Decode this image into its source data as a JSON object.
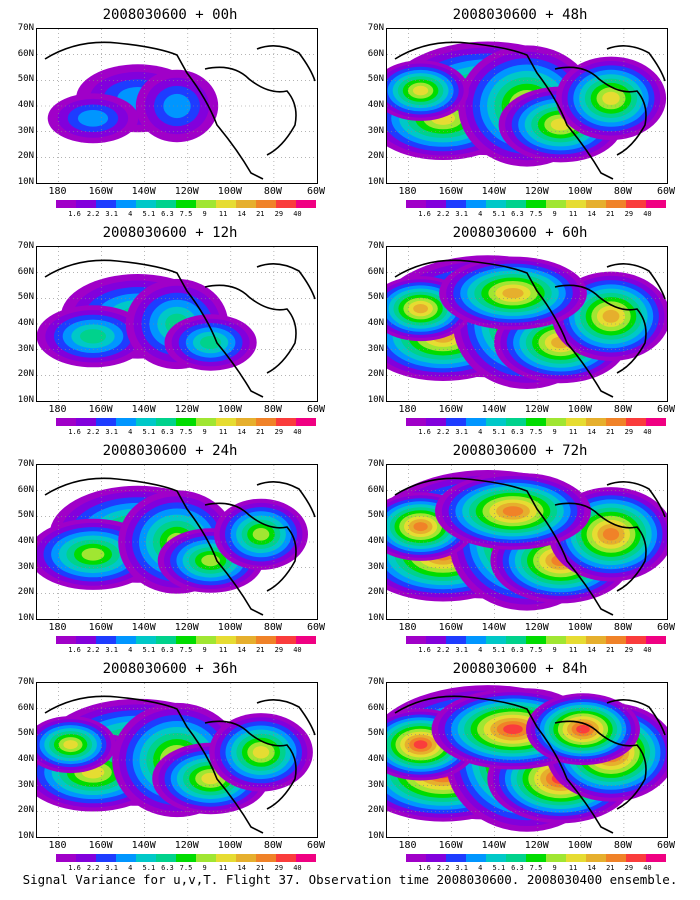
{
  "figure": {
    "caption": "Signal Variance for u,v,T. Flight 37. Observation time 2008030600. 2008030400 ensemble."
  },
  "map_axes": {
    "lat_labels": [
      "70N",
      "60N",
      "50N",
      "40N",
      "30N",
      "20N",
      "10N"
    ],
    "lon_labels": [
      "180",
      "160W",
      "140W",
      "120W",
      "100W",
      "80W",
      "60W"
    ],
    "lat_range": [
      10,
      70
    ],
    "lon_range": [
      -190,
      -60
    ]
  },
  "colorbar": {
    "levels": [
      "1.6",
      "2.2",
      "3.1",
      "4",
      "5.1",
      "6.3",
      "7.5",
      "9",
      "11",
      "14",
      "21",
      "29",
      "40"
    ],
    "colors": [
      "#a000c8",
      "#8200dc",
      "#1e3cff",
      "#0096ff",
      "#00c8c8",
      "#00d28c",
      "#00dc00",
      "#a0e632",
      "#e6dc32",
      "#e6af2d",
      "#f08228",
      "#fa3c3c",
      "#f00082"
    ]
  },
  "panels": [
    {
      "title": "2008030600 + 00h",
      "intensity": 0.15
    },
    {
      "title": "2008030600 + 12h",
      "intensity": 0.35
    },
    {
      "title": "2008030600 + 24h",
      "intensity": 0.5
    },
    {
      "title": "2008030600 + 36h",
      "intensity": 0.62
    },
    {
      "title": "2008030600 + 48h",
      "intensity": 0.7
    },
    {
      "title": "2008030600 + 60h",
      "intensity": 0.8
    },
    {
      "title": "2008030600 + 72h",
      "intensity": 0.88
    },
    {
      "title": "2008030600 + 84h",
      "intensity": 0.95
    }
  ]
}
